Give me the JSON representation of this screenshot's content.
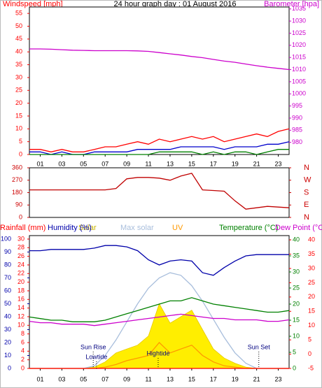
{
  "chart_data": [
    {
      "type": "line",
      "title": "24 hour graph day : 01 August 2016",
      "ylabel": "Windspeed [mph]",
      "y2label": "Barometer [hpa]",
      "ycolor": "#ff0000",
      "y2color": "#cc00cc",
      "x": [
        0,
        1,
        2,
        3,
        4,
        5,
        6,
        7,
        8,
        9,
        10,
        11,
        12,
        13,
        14,
        15,
        16,
        17,
        18,
        19,
        20,
        21,
        22,
        23,
        24
      ],
      "xlim": [
        0,
        24
      ],
      "xticks": [
        {
          "value": 1,
          "label": "01"
        },
        {
          "value": 3,
          "label": "03"
        },
        {
          "value": 5,
          "label": "05"
        },
        {
          "value": 7,
          "label": "07"
        },
        {
          "value": 9,
          "label": "09"
        },
        {
          "value": 11,
          "label": "11"
        },
        {
          "value": 13,
          "label": "13"
        },
        {
          "value": 15,
          "label": "15"
        },
        {
          "value": 17,
          "label": "17"
        },
        {
          "value": 19,
          "label": "19"
        },
        {
          "value": 21,
          "label": "21"
        },
        {
          "value": 23,
          "label": "23"
        }
      ],
      "ylim": [
        0,
        57.5
      ],
      "yticks": [
        0,
        5,
        10,
        15,
        20,
        25,
        30,
        35,
        40,
        45,
        50,
        55
      ],
      "y2lim": [
        975,
        1035.8
      ],
      "y2ticks": [
        980,
        985,
        990,
        995,
        1000,
        1005,
        1010,
        1015,
        1020,
        1025,
        1030,
        1035
      ],
      "series": [
        {
          "color": "#ff0000",
          "values": [
            2,
            2,
            1,
            2,
            1,
            1,
            2,
            3,
            3,
            4,
            5,
            4,
            6,
            5,
            6,
            7,
            6,
            7,
            5,
            6,
            7,
            8,
            7,
            9,
            10
          ]
        },
        {
          "color": "#0000cc",
          "values": [
            1,
            1,
            0,
            1,
            0,
            0,
            1,
            1,
            1,
            1,
            2,
            2,
            2,
            2,
            3,
            3,
            3,
            3,
            2,
            3,
            3,
            3,
            4,
            4,
            5
          ]
        },
        {
          "color": "#008000",
          "values": [
            0,
            0,
            0,
            0,
            0,
            0,
            0,
            0,
            0,
            0,
            0,
            0,
            1,
            1,
            1,
            1,
            0,
            1,
            0,
            1,
            1,
            0,
            1,
            2,
            2
          ]
        },
        {
          "color": "#cc00cc",
          "axis": "y2",
          "values": [
            1018.5,
            1018.5,
            1018.4,
            1018.2,
            1018,
            1017.9,
            1017.8,
            1017.8,
            1017.8,
            1017.8,
            1017.7,
            1017.5,
            1017,
            1016.5,
            1016,
            1015.4,
            1014.9,
            1014.2,
            1013.5,
            1013,
            1012.3,
            1011.6,
            1011,
            1010.5,
            1010
          ]
        }
      ]
    },
    {
      "type": "line",
      "ycolor": "#cc0000",
      "y2color": "#cc0000",
      "x": [
        0,
        1,
        2,
        3,
        4,
        5,
        6,
        7,
        8,
        9,
        10,
        11,
        12,
        13,
        14,
        15,
        16,
        17,
        18,
        19,
        20,
        21,
        22,
        23,
        24
      ],
      "xlim": [
        0,
        24
      ],
      "ylim": [
        0,
        360
      ],
      "yticks": [
        0,
        90,
        180,
        270,
        360
      ],
      "y2lim": [
        0,
        360
      ],
      "y2ticks": [
        {
          "value": 0,
          "label": "N"
        },
        {
          "value": 90,
          "label": "E"
        },
        {
          "value": 180,
          "label": "S"
        },
        {
          "value": 270,
          "label": "W"
        },
        {
          "value": 360,
          "label": "N"
        }
      ],
      "series": [
        {
          "color": "#c00000",
          "values": [
            200,
            200,
            200,
            200,
            200,
            200,
            200,
            200,
            210,
            280,
            290,
            290,
            285,
            270,
            300,
            320,
            200,
            195,
            190,
            120,
            60,
            70,
            80,
            75,
            70
          ]
        }
      ]
    },
    {
      "type": "line",
      "ycolor": "#0000aa",
      "y2color": "#008000",
      "y3color": "#ff0000",
      "y4color": "#ff0000",
      "x": [
        0,
        1,
        2,
        3,
        4,
        5,
        6,
        7,
        8,
        9,
        10,
        11,
        12,
        13,
        14,
        15,
        16,
        17,
        18,
        19,
        20,
        21,
        22,
        23,
        24
      ],
      "xlim": [
        0,
        24
      ],
      "xticks": [
        {
          "value": 1,
          "label": "01"
        },
        {
          "value": 3,
          "label": "03"
        },
        {
          "value": 5,
          "label": "05"
        },
        {
          "value": 7,
          "label": "07"
        },
        {
          "value": 9,
          "label": "09"
        },
        {
          "value": 11,
          "label": "11"
        },
        {
          "value": 13,
          "label": "13"
        },
        {
          "value": 15,
          "label": "15"
        },
        {
          "value": 17,
          "label": "17"
        },
        {
          "value": 19,
          "label": "19"
        },
        {
          "value": 21,
          "label": "21"
        },
        {
          "value": 23,
          "label": "23"
        }
      ],
      "ylim": [
        0,
        102.7
      ],
      "yticks": [
        0,
        10,
        20,
        30,
        40,
        50,
        60,
        70,
        80,
        90,
        100
      ],
      "y2lim": [
        0,
        41.3
      ],
      "y2ticks": [
        0,
        5,
        10,
        15,
        20,
        25,
        30,
        35,
        40
      ],
      "y3lim": [
        0,
        30.8
      ],
      "y3ticks": [
        0,
        2,
        4,
        6,
        8,
        10,
        12,
        14,
        16,
        18,
        20,
        22,
        24,
        26,
        28,
        30
      ],
      "y4lim": [
        -5,
        41.5
      ],
      "y4ticks": [
        -5,
        0,
        5,
        10,
        15,
        20,
        25,
        30,
        35,
        40
      ],
      "series": [
        {
          "name": "Solar",
          "color": "#ffee00",
          "fill": true,
          "values": [
            0,
            0,
            0,
            0,
            0,
            0,
            1,
            5,
            12,
            15,
            18,
            25,
            50,
            35,
            40,
            45,
            30,
            15,
            8,
            4,
            1,
            0,
            0,
            0,
            0
          ]
        },
        {
          "name": "Max solar",
          "color": "#a8bedc",
          "values": [
            0,
            0,
            0,
            0,
            0,
            0,
            2,
            10,
            22,
            36,
            50,
            62,
            70,
            74,
            72,
            64,
            52,
            38,
            24,
            12,
            4,
            0,
            0,
            0,
            0
          ]
        },
        {
          "name": "UV",
          "color": "#ff9900",
          "values": [
            0,
            0,
            0,
            0,
            0,
            0,
            0,
            1,
            3,
            6,
            8,
            10,
            20,
            12,
            15,
            18,
            10,
            5,
            2,
            1,
            0,
            0,
            0,
            0,
            0
          ]
        },
        {
          "name": "Rainfall (mm)",
          "color": "#ff0000",
          "axis": "y3",
          "values": [
            0,
            0,
            0,
            0,
            0,
            0,
            0,
            0,
            0,
            0,
            0,
            0,
            0,
            0,
            0,
            0,
            0,
            0,
            0,
            0,
            0,
            0,
            0,
            0,
            0
          ]
        },
        {
          "name": "Humidity (%)",
          "color": "#0000aa",
          "values": [
            91,
            91,
            92,
            92,
            92,
            92,
            93,
            95,
            95,
            94,
            91,
            84,
            80,
            83,
            84,
            83,
            74,
            72,
            78,
            83,
            87,
            88,
            88,
            88,
            88
          ]
        },
        {
          "name": "Temperature (°C)",
          "color": "#008000",
          "axis": "y2",
          "values": [
            16,
            15.5,
            15,
            15,
            14.5,
            14.5,
            14.5,
            15,
            16,
            17,
            18,
            19,
            20,
            21,
            21,
            22,
            21,
            20,
            19.5,
            19,
            18.5,
            18,
            17.5,
            17.5,
            18
          ]
        },
        {
          "name": "Dew Point (°C)",
          "color": "#cc00cc",
          "axis": "y4",
          "values": [
            11.5,
            11,
            11,
            10.5,
            10.5,
            10.5,
            10,
            10.5,
            11,
            11.5,
            12,
            12.5,
            13,
            13.5,
            14,
            13.5,
            13,
            12.5,
            12.5,
            12,
            12,
            12,
            11.5,
            11.5,
            12
          ]
        }
      ],
      "annotations": [
        {
          "text": "Sun Rise",
          "x": 5.9
        },
        {
          "text": "Lowtide",
          "x": 6.2
        },
        {
          "text": "Hightide",
          "x": 11.9
        },
        {
          "text": "Sun Set",
          "x": 21.2
        }
      ]
    }
  ]
}
